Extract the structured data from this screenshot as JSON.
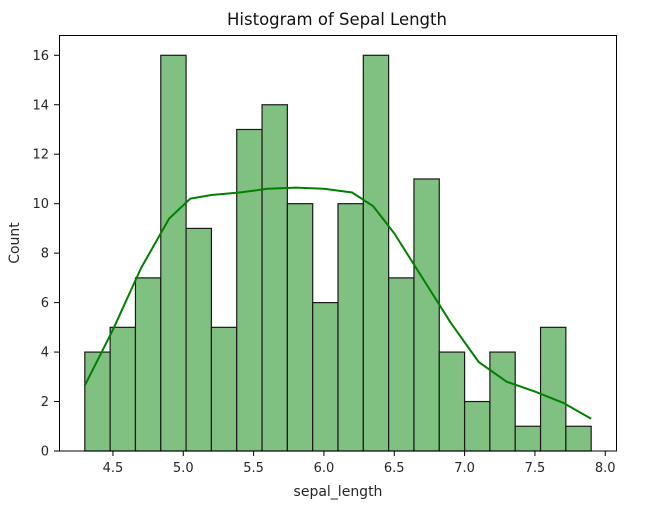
{
  "chart_data": {
    "type": "bar",
    "subtype": "histogram_with_kde",
    "title": "Histogram of Sepal Length",
    "xlabel": "sepal_length",
    "ylabel": "Count",
    "xlim": [
      4.12,
      8.08
    ],
    "ylim": [
      0,
      16.8
    ],
    "xticks": [
      4.5,
      5.0,
      5.5,
      6.0,
      6.5,
      7.0,
      7.5,
      8.0
    ],
    "xtick_labels": [
      "4.5",
      "5.0",
      "5.5",
      "6.0",
      "6.5",
      "7.0",
      "7.5",
      "8.0"
    ],
    "yticks": [
      0,
      2,
      4,
      6,
      8,
      10,
      12,
      14,
      16
    ],
    "ytick_labels": [
      "0",
      "2",
      "4",
      "6",
      "8",
      "10",
      "12",
      "14",
      "16"
    ],
    "grid": false,
    "legend": null,
    "bin_start": 4.3,
    "bin_width": 0.18,
    "bin_edges": [
      4.3,
      4.48,
      4.66,
      4.84,
      5.02,
      5.2,
      5.38,
      5.56,
      5.74,
      5.92,
      6.1,
      6.28,
      6.46,
      6.64,
      6.82,
      7.0,
      7.18,
      7.36,
      7.54,
      7.72,
      7.9
    ],
    "categories": [
      "4.30-4.48",
      "4.48-4.66",
      "4.66-4.84",
      "4.84-5.02",
      "5.02-5.20",
      "5.20-5.38",
      "5.38-5.56",
      "5.56-5.74",
      "5.74-5.92",
      "5.92-6.10",
      "6.10-6.28",
      "6.28-6.46",
      "6.46-6.64",
      "6.64-6.82",
      "6.82-7.00",
      "7.00-7.18",
      "7.18-7.36",
      "7.36-7.54",
      "7.54-7.72",
      "7.72-7.90"
    ],
    "values": [
      4,
      5,
      7,
      16,
      9,
      5,
      13,
      14,
      10,
      6,
      10,
      16,
      7,
      11,
      4,
      2,
      4,
      1,
      5,
      1
    ],
    "kde": {
      "x": [
        4.3,
        4.5,
        4.7,
        4.9,
        5.05,
        5.2,
        5.4,
        5.6,
        5.8,
        6.0,
        6.2,
        6.35,
        6.5,
        6.7,
        6.9,
        7.1,
        7.3,
        7.5,
        7.7,
        7.9
      ],
      "y": [
        2.65,
        4.9,
        7.4,
        9.4,
        10.2,
        10.35,
        10.45,
        10.6,
        10.65,
        10.6,
        10.45,
        9.9,
        8.8,
        7.0,
        5.2,
        3.6,
        2.8,
        2.4,
        1.95,
        1.3
      ]
    },
    "colors": {
      "bar_fill": "#80c080",
      "bar_edge": "#1a1a1a",
      "kde_line": "#008000"
    }
  }
}
